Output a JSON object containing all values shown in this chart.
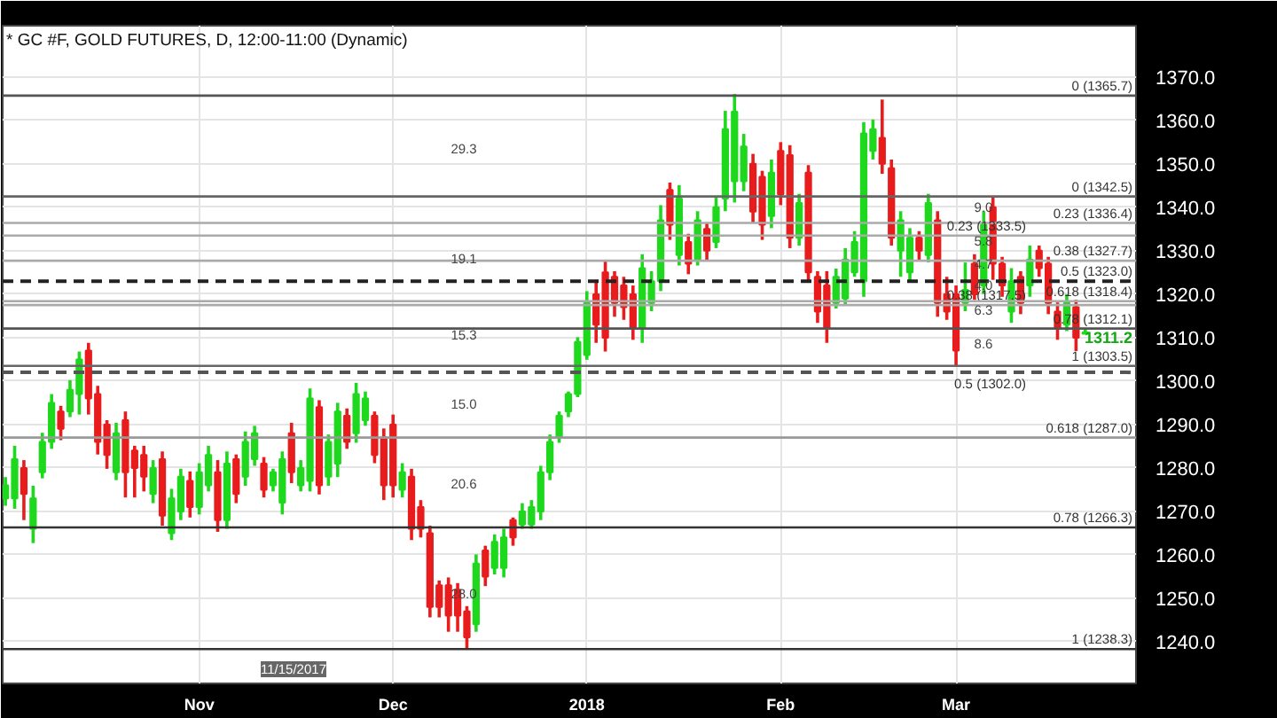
{
  "chart_data": {
    "type": "candlestick",
    "title": "* GC #F, GOLD FUTURES, D, 12:00-11:00 (Dynamic)",
    "categories": [
      null,
      null,
      null,
      null,
      null,
      null,
      null,
      null,
      null,
      null,
      null,
      null,
      null,
      null,
      null,
      null,
      null,
      null,
      null,
      null,
      null,
      "Nov",
      null,
      null,
      null,
      null,
      null,
      null,
      null,
      null,
      null,
      null,
      null,
      null,
      null,
      null,
      null,
      null,
      null,
      null,
      null,
      null,
      "Dec",
      null,
      null,
      null,
      null,
      null,
      null,
      null,
      null,
      null,
      null,
      null,
      null,
      null,
      null,
      null,
      null,
      null,
      null,
      null,
      null,
      "2018",
      null,
      null,
      null,
      null,
      null,
      null,
      null,
      null,
      null,
      null,
      null,
      null,
      null,
      null,
      null,
      null,
      null,
      null,
      null,
      null,
      "Feb",
      null,
      null,
      null,
      null,
      null,
      null,
      null,
      null,
      null,
      null,
      null,
      null,
      null,
      null,
      null,
      null,
      null,
      null,
      "Mar",
      null,
      null,
      null,
      null,
      null,
      null,
      null,
      null,
      null,
      null,
      null,
      null,
      null,
      null
    ],
    "ohlc": [
      [
        1273,
        1277.9,
        1271.3,
        1276
      ],
      [
        1273,
        1285.1,
        1270.6,
        1282
      ],
      [
        1280,
        1281.8,
        1268.0,
        1274
      ],
      [
        1266,
        1275.9,
        1262.7,
        1273
      ],
      [
        1279,
        1288.1,
        1277.6,
        1286
      ],
      [
        1286,
        1297.0,
        1284.4,
        1295
      ],
      [
        1293,
        1294.3,
        1286.4,
        1289
      ],
      [
        1293,
        1300.2,
        1291.7,
        1298
      ],
      [
        1297,
        1306.8,
        1292.3,
        1305
      ],
      [
        1307,
        1308.8,
        1292.3,
        1296
      ],
      [
        1297,
        1298.9,
        1283.1,
        1286
      ],
      [
        1290,
        1291.0,
        1279.8,
        1283
      ],
      [
        1279,
        1290.4,
        1277.2,
        1288
      ],
      [
        1291,
        1293.0,
        1273.2,
        1279
      ],
      [
        1284,
        1285.1,
        1273.2,
        1280
      ],
      [
        1283,
        1285.1,
        1274.6,
        1278
      ],
      [
        1274,
        1281.8,
        1271.9,
        1280
      ],
      [
        1282,
        1283.8,
        1266.7,
        1269
      ],
      [
        1265,
        1275.2,
        1263.4,
        1273
      ],
      [
        1270,
        1279.8,
        1268.0,
        1278
      ],
      [
        1277,
        1279.2,
        1268.6,
        1271
      ],
      [
        1271,
        1281.1,
        1269.3,
        1279
      ],
      [
        1276,
        1285.1,
        1274.6,
        1283
      ],
      [
        1279,
        1281.8,
        1265.3,
        1268
      ],
      [
        1268,
        1283.8,
        1266.0,
        1281
      ],
      [
        1282,
        1283.1,
        1271.9,
        1274
      ],
      [
        1278,
        1288.4,
        1275.9,
        1286
      ],
      [
        1282,
        1289.7,
        1280.5,
        1288
      ],
      [
        1281,
        1282.5,
        1273.2,
        1275
      ],
      [
        1276,
        1279.8,
        1274.6,
        1279
      ],
      [
        1272,
        1283.8,
        1269.3,
        1282
      ],
      [
        1288,
        1290.4,
        1276.5,
        1279
      ],
      [
        1276,
        1281.8,
        1274.6,
        1280
      ],
      [
        1277,
        1298.3,
        1274.6,
        1296
      ],
      [
        1294,
        1295.6,
        1273.9,
        1276
      ],
      [
        1278,
        1287.7,
        1275.9,
        1286
      ],
      [
        1281,
        1295.0,
        1277.9,
        1293
      ],
      [
        1292,
        1293.7,
        1284.4,
        1286
      ],
      [
        1288,
        1299.6,
        1285.8,
        1297
      ],
      [
        1291,
        1297.6,
        1289.7,
        1296
      ],
      [
        1292,
        1293.0,
        1281.1,
        1283
      ],
      [
        1287,
        1289.1,
        1272.6,
        1276
      ],
      [
        1290,
        1292.3,
        1273.2,
        1276
      ],
      [
        1275,
        1281.1,
        1273.2,
        1279
      ],
      [
        1278,
        1279.8,
        1263.4,
        1266
      ],
      [
        1271,
        1272.6,
        1264.0,
        1266
      ],
      [
        1265,
        1266.7,
        1245.6,
        1248
      ],
      [
        1253,
        1254.1,
        1245.6,
        1248
      ],
      [
        1253,
        1254.8,
        1242.3,
        1246
      ],
      [
        1252,
        1253.5,
        1242.3,
        1246
      ],
      [
        1247,
        1248.2,
        1238.3,
        1241
      ],
      [
        1244,
        1260.1,
        1242.3,
        1258
      ],
      [
        1261,
        1262.1,
        1252.8,
        1255
      ],
      [
        1257,
        1264.7,
        1255.5,
        1263
      ],
      [
        1257,
        1266.0,
        1254.8,
        1264
      ],
      [
        1268,
        1268.6,
        1262.1,
        1264
      ],
      [
        1267,
        1271.9,
        1266.0,
        1270
      ],
      [
        1267,
        1272.6,
        1266.0,
        1271
      ],
      [
        1270,
        1280.5,
        1268.0,
        1279
      ],
      [
        1279,
        1287.7,
        1277.2,
        1286
      ],
      [
        1287,
        1293.0,
        1285.8,
        1292
      ],
      [
        1293,
        1297.6,
        1291.7,
        1297
      ],
      [
        1297,
        1310.1,
        1296.3,
        1309
      ],
      [
        1306,
        1320.7,
        1304.9,
        1318
      ],
      [
        1320,
        1323.3,
        1308.8,
        1313
      ],
      [
        1325,
        1327.9,
        1306.8,
        1310
      ],
      [
        1324,
        1325.3,
        1314.8,
        1318
      ],
      [
        1322,
        1324.0,
        1314.1,
        1317
      ],
      [
        1320,
        1322.0,
        1309.5,
        1312
      ],
      [
        1312,
        1329.2,
        1308.8,
        1326
      ],
      [
        1318,
        1325.3,
        1316.1,
        1323
      ],
      [
        1323,
        1340.5,
        1320.7,
        1337
      ],
      [
        1344,
        1345.7,
        1332.5,
        1336
      ],
      [
        1329,
        1345.1,
        1326.6,
        1342
      ],
      [
        1332,
        1333.9,
        1324.6,
        1327
      ],
      [
        1328,
        1339.1,
        1326.6,
        1337
      ],
      [
        1335,
        1336.5,
        1327.9,
        1330
      ],
      [
        1332,
        1342.4,
        1330.6,
        1340
      ],
      [
        1342,
        1362.2,
        1339.1,
        1358
      ],
      [
        1346,
        1366.1,
        1341.1,
        1362
      ],
      [
        1346,
        1356.9,
        1343.7,
        1354
      ],
      [
        1350,
        1352.3,
        1336.5,
        1339
      ],
      [
        1347,
        1348.4,
        1332.5,
        1336
      ],
      [
        1338,
        1351.0,
        1335.2,
        1348
      ],
      [
        1353,
        1355.0,
        1340.5,
        1343
      ],
      [
        1352,
        1354.3,
        1330.6,
        1333
      ],
      [
        1333,
        1343.1,
        1331.2,
        1341
      ],
      [
        1348,
        1349.7,
        1322.7,
        1325
      ],
      [
        1324,
        1325.3,
        1313.4,
        1316
      ],
      [
        1322,
        1325.3,
        1308.8,
        1312
      ],
      [
        1318,
        1325.9,
        1316.7,
        1324
      ],
      [
        1319,
        1330.6,
        1317.4,
        1328
      ],
      [
        1325,
        1334.5,
        1324.0,
        1332
      ],
      [
        1323,
        1359.6,
        1319.4,
        1357
      ],
      [
        1353,
        1360.2,
        1351.0,
        1358
      ],
      [
        1356,
        1364.8,
        1347.7,
        1350
      ],
      [
        1349,
        1351.0,
        1331.2,
        1333
      ],
      [
        1330,
        1339.1,
        1324.0,
        1337
      ],
      [
        1325,
        1335.2,
        1322.7,
        1333
      ],
      [
        1333,
        1334.5,
        1327.9,
        1330
      ],
      [
        1329,
        1343.1,
        1327.3,
        1341
      ],
      [
        1337,
        1339.1,
        1314.8,
        1318
      ],
      [
        1320,
        1324.0,
        1314.1,
        1316
      ],
      [
        1320,
        1322.0,
        1303.5,
        1307
      ],
      [
        1318,
        1327.3,
        1316.1,
        1321
      ],
      [
        1327,
        1329.2,
        1318.7,
        1320
      ],
      [
        1322,
        1339.1,
        1320.0,
        1336
      ],
      [
        1340,
        1342.4,
        1323.3,
        1327
      ],
      [
        1327,
        1328.6,
        1319.4,
        1322
      ],
      [
        1316,
        1326.0,
        1313.4,
        1323
      ],
      [
        1324,
        1325.3,
        1315.4,
        1318
      ],
      [
        1322,
        1331.2,
        1319.4,
        1328
      ],
      [
        1330,
        1331.2,
        1324.0,
        1326
      ],
      [
        1327,
        1328.6,
        1315.4,
        1318
      ],
      [
        1316,
        1318.1,
        1309.5,
        1312
      ],
      [
        1313,
        1320.0,
        1311.5,
        1318
      ],
      [
        1317,
        1318.7,
        1306.9,
        1310
      ],
      [
        1310.9,
        1312.1,
        1310.8,
        1311.2
      ]
    ],
    "ylim": [
      1230.4,
      1381.8
    ],
    "yticks": [
      {
        "value": 1240,
        "label": "1240.0"
      },
      {
        "value": 1250,
        "label": "1250.0"
      },
      {
        "value": 1260,
        "label": "1260.0"
      },
      {
        "value": 1270,
        "label": "1270.0"
      },
      {
        "value": 1280,
        "label": "1280.0"
      },
      {
        "value": 1290,
        "label": "1290.0"
      },
      {
        "value": 1300,
        "label": "1300.0"
      },
      {
        "value": 1310,
        "label": "1310.0"
      },
      {
        "value": 1320,
        "label": "1320.0"
      },
      {
        "value": 1330,
        "label": "1330.0"
      },
      {
        "value": 1340,
        "label": "1340.0"
      },
      {
        "value": 1350,
        "label": "1350.0"
      },
      {
        "value": 1360,
        "label": "1360.0"
      },
      {
        "value": 1370,
        "label": "1370.0"
      }
    ],
    "grid": true,
    "ref_lines": [
      {
        "axis": "y",
        "value": 1365.7,
        "label": "0 (1365.7)",
        "color": "#555555",
        "line_style": "solid"
      },
      {
        "axis": "y",
        "value": 1336.4,
        "label": "0.23 (1336.4)",
        "color": "#aaaaaa",
        "line_style": "solid"
      },
      {
        "axis": "y",
        "value": 1317.5,
        "label": "0.38 (1317.5)",
        "color": "#aaaaaa",
        "line_style": "solid"
      },
      {
        "axis": "y",
        "value": 1302.0,
        "label": "0.5 (1302.0)",
        "color": "#555555",
        "line_style": "dashed"
      },
      {
        "axis": "y",
        "value": 1287.0,
        "label": "0.618 (1287.0)",
        "color": "#999999",
        "line_style": "solid"
      },
      {
        "axis": "y",
        "value": 1266.3,
        "label": "0.78 (1266.3)",
        "color": "#333333",
        "line_style": "solid"
      },
      {
        "axis": "y",
        "value": 1238.3,
        "label": "1 (1238.3)",
        "color": "#333333",
        "line_style": "solid"
      },
      {
        "axis": "y",
        "value": 1342.5,
        "label": "0 (1342.5)",
        "color": "#666666",
        "line_style": "solid"
      },
      {
        "axis": "y",
        "value": 1333.5,
        "label": "0.23 (1333.5)",
        "color": "#aaaaaa",
        "line_style": "solid"
      },
      {
        "axis": "y",
        "value": 1327.7,
        "label": "0.38 (1327.7)",
        "color": "#aaaaaa",
        "line_style": "solid"
      },
      {
        "axis": "y",
        "value": 1323.0,
        "label": "0.5 (1323.0)",
        "color": "#222222",
        "line_style": "dashed"
      },
      {
        "axis": "y",
        "value": 1318.4,
        "label": "0.618 (1318.4)",
        "color": "#aaaaaa",
        "line_style": "solid"
      },
      {
        "axis": "y",
        "value": 1312.1,
        "label": "0.78 (1312.1)",
        "color": "#555555",
        "line_style": "solid"
      },
      {
        "axis": "y",
        "value": 1303.5,
        "label": "1 (1303.5)",
        "color": "#666666",
        "line_style": "solid"
      }
    ],
    "annotations": [
      "29.3",
      "19.1",
      "15.3",
      "15.0",
      "20.6",
      "28.0",
      "9.0",
      "5.8",
      "4.7",
      "4.0",
      "6.3",
      "8.6",
      "11/15/2017",
      "1311.2"
    ]
  }
}
